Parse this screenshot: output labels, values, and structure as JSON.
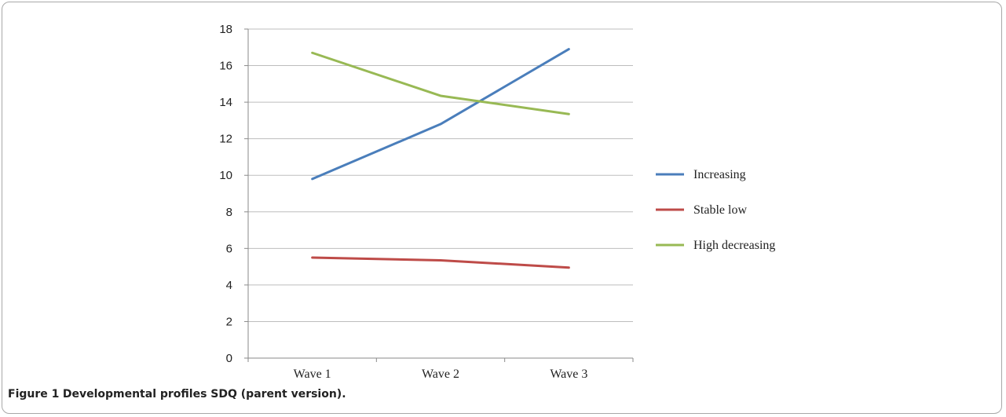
{
  "caption": {
    "figure_label": "Figure 1",
    "title": "Developmental profiles SDQ (parent version)."
  },
  "chart_data": {
    "type": "line",
    "title": "",
    "xlabel": "",
    "ylabel": "",
    "categories": [
      "Wave 1",
      "Wave 2",
      "Wave 3"
    ],
    "ylim": [
      0,
      18
    ],
    "yticks": [
      "0",
      "2",
      "4",
      "6",
      "8",
      "10",
      "12",
      "14",
      "16",
      "18"
    ],
    "grid": true,
    "legend_position": "right",
    "series": [
      {
        "name": "Increasing",
        "color": "#4a7ebb",
        "values": [
          9.8,
          12.8,
          16.9
        ]
      },
      {
        "name": "Stable low",
        "color": "#be4b48",
        "values": [
          5.5,
          5.35,
          4.95
        ]
      },
      {
        "name": "High decreasing",
        "color": "#98b954",
        "values": [
          16.7,
          14.35,
          13.35
        ]
      }
    ]
  }
}
